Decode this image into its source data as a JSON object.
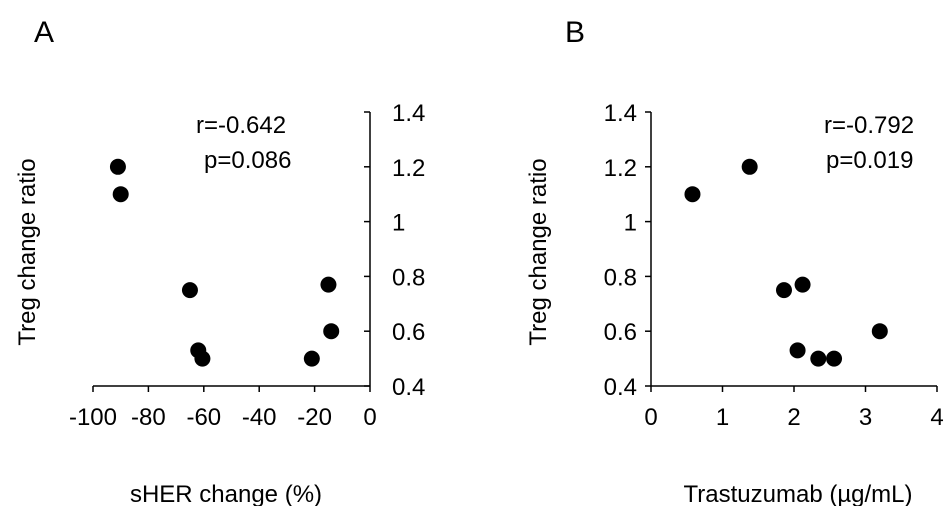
{
  "chart_data": [
    {
      "type": "scatter",
      "panel_label": "A",
      "xlabel": "sHER change (%)",
      "ylabel": "Treg change ratio",
      "xlim": [
        -100,
        0
      ],
      "ylim": [
        0.4,
        1.4
      ],
      "x_ticks": [
        "-100",
        "-80",
        "-60",
        "-40",
        "-20",
        "0"
      ],
      "y_ticks": [
        "0.4",
        "0.6",
        "0.8",
        "1",
        "1.2",
        "1.4"
      ],
      "y_axis_side": "right",
      "grid": false,
      "annotations": [
        "r=-0.642",
        "p=0.086"
      ],
      "points": [
        {
          "x": -91,
          "y": 1.2
        },
        {
          "x": -90,
          "y": 1.1
        },
        {
          "x": -65,
          "y": 0.75
        },
        {
          "x": -62,
          "y": 0.53
        },
        {
          "x": -60.5,
          "y": 0.5
        },
        {
          "x": -21,
          "y": 0.5
        },
        {
          "x": -15,
          "y": 0.77
        },
        {
          "x": -14,
          "y": 0.6
        }
      ]
    },
    {
      "type": "scatter",
      "panel_label": "B",
      "xlabel": "Trastuzumab (µg/mL)",
      "ylabel": "Treg change ratio",
      "xlim": [
        0,
        4
      ],
      "ylim": [
        0.4,
        1.4
      ],
      "x_ticks": [
        "0",
        "1",
        "2",
        "3",
        "4"
      ],
      "y_ticks": [
        "0.4",
        "0.6",
        "0.8",
        "1",
        "1.2",
        "1.4"
      ],
      "y_axis_side": "left",
      "grid": false,
      "annotations": [
        "r=-0.792",
        "p=0.019"
      ],
      "points": [
        {
          "x": 0.58,
          "y": 1.1
        },
        {
          "x": 1.38,
          "y": 1.2
        },
        {
          "x": 1.86,
          "y": 0.75
        },
        {
          "x": 2.12,
          "y": 0.77
        },
        {
          "x": 2.05,
          "y": 0.53
        },
        {
          "x": 2.34,
          "y": 0.5
        },
        {
          "x": 2.56,
          "y": 0.5
        },
        {
          "x": 3.2,
          "y": 0.6
        }
      ]
    }
  ]
}
